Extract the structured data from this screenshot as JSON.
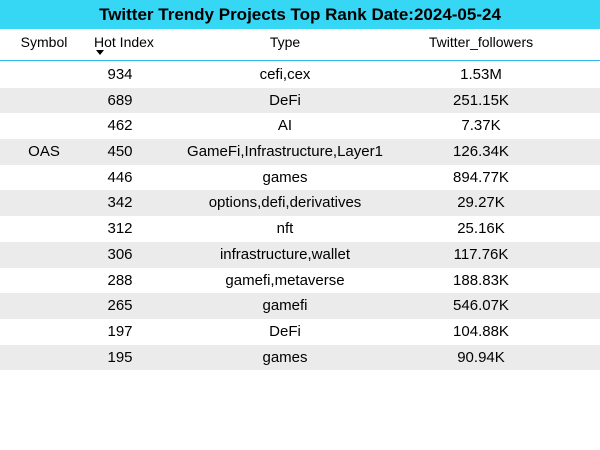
{
  "chart_data": {
    "type": "table",
    "title": "Twitter Trendy Projects Top Rank Date:2024-05-24",
    "columns": [
      "Symbol",
      "Hot Index",
      "Type",
      "Twitter_followers"
    ],
    "sort": {
      "column": "Hot Index",
      "direction": "descending"
    },
    "rows": [
      {
        "symbol": "",
        "hot_index": "934",
        "type": "cefi,cex",
        "twitter_followers": "1.53M"
      },
      {
        "symbol": "",
        "hot_index": "689",
        "type": "DeFi",
        "twitter_followers": "251.15K"
      },
      {
        "symbol": "",
        "hot_index": "462",
        "type": "AI",
        "twitter_followers": "7.37K"
      },
      {
        "symbol": "OAS",
        "hot_index": "450",
        "type": "GameFi,Infrastructure,Layer1",
        "twitter_followers": "126.34K"
      },
      {
        "symbol": "",
        "hot_index": "446",
        "type": "games",
        "twitter_followers": "894.77K"
      },
      {
        "symbol": "",
        "hot_index": "342",
        "type": "options,defi,derivatives",
        "twitter_followers": "29.27K"
      },
      {
        "symbol": "",
        "hot_index": "312",
        "type": "nft",
        "twitter_followers": "25.16K"
      },
      {
        "symbol": "",
        "hot_index": "306",
        "type": "infrastructure,wallet",
        "twitter_followers": "117.76K"
      },
      {
        "symbol": "",
        "hot_index": "288",
        "type": "gamefi,metaverse",
        "twitter_followers": "188.83K"
      },
      {
        "symbol": "",
        "hot_index": "265",
        "type": "gamefi",
        "twitter_followers": "546.07K"
      },
      {
        "symbol": "",
        "hot_index": "197",
        "type": "DeFi",
        "twitter_followers": "104.88K"
      },
      {
        "symbol": "",
        "hot_index": "195",
        "type": "games",
        "twitter_followers": "90.94K"
      }
    ]
  },
  "colors": {
    "title_background": "#36d7f5",
    "header_rule": "#36b8e8",
    "alternate_row": "#ebebeb"
  }
}
